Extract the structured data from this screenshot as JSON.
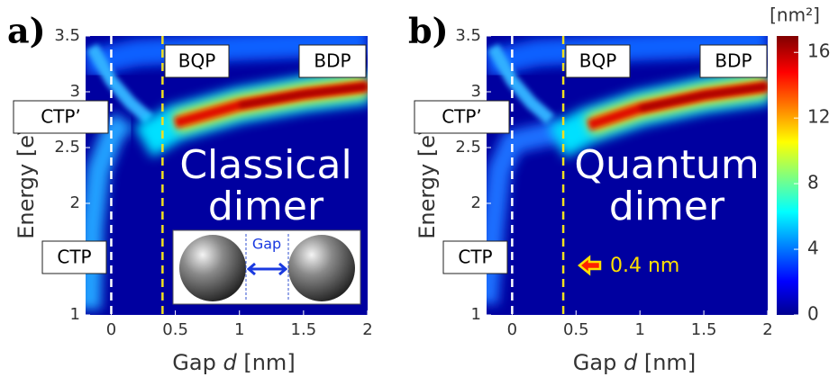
{
  "charts": [
    {
      "type": "heatmap",
      "title": "a)",
      "ylabel": "Energy [eV]",
      "xlabel": [
        "Gap",
        "d",
        "[nm]"
      ],
      "xlim": [
        -0.2,
        2
      ],
      "xticks": [
        0,
        0.5,
        1,
        1.5,
        2
      ],
      "ylim": [
        1,
        3.5
      ],
      "yticks": [
        1,
        2,
        2.5,
        3,
        3.5
      ],
      "markers": [
        {
          "x": 0,
          "color": "#ffffff"
        },
        {
          "x": 0.4,
          "color": "#f0e020"
        }
      ],
      "boxed_labels": [
        "BQP",
        "BDP",
        "CTP’",
        "CTP"
      ],
      "overlay_text": [
        "Classical",
        "dimer"
      ],
      "inset_label": "Gap"
    },
    {
      "type": "heatmap",
      "title": "b)",
      "ylabel": "Energy [eV]",
      "xlabel": [
        "Gap",
        "d",
        "[nm]"
      ],
      "xlim": [
        -0.2,
        2
      ],
      "xticks": [
        0,
        0.5,
        1,
        1.5,
        2
      ],
      "ylim": [
        1,
        3.5
      ],
      "yticks": [
        1,
        2,
        2.5,
        3,
        3.5
      ],
      "markers": [
        {
          "x": 0,
          "color": "#ffffff"
        },
        {
          "x": 0.4,
          "color": "#f0e020"
        }
      ],
      "boxed_labels": [
        "BQP",
        "BDP",
        "CTP’",
        "CTP"
      ],
      "overlay_text": [
        "Quantum",
        "dimer"
      ],
      "marker_note": "0.4 nm"
    }
  ],
  "colorbar": {
    "label": "[nm²]",
    "lim": [
      0,
      17
    ],
    "ticks": [
      0,
      4,
      8,
      12,
      16
    ]
  }
}
